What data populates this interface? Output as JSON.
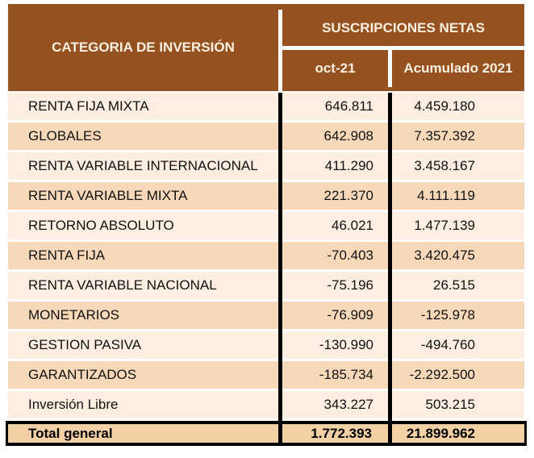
{
  "table": {
    "header": {
      "category_col": "CATEGORIA DE INVERSIÓN",
      "group_col": "SUSCRIPCIONES NETAS",
      "sub_col_1": "oct-21",
      "sub_col_2": "Acumulado 2021"
    },
    "rows": [
      {
        "category": "RENTA FIJA MIXTA",
        "oct21": "646.811",
        "acumulado": "4.459.180"
      },
      {
        "category": "GLOBALES",
        "oct21": "642.908",
        "acumulado": "7.357.392"
      },
      {
        "category": "RENTA VARIABLE INTERNACIONAL",
        "oct21": "411.290",
        "acumulado": "3.458.167"
      },
      {
        "category": "RENTA VARIABLE MIXTA",
        "oct21": "221.370",
        "acumulado": "4.111.119"
      },
      {
        "category": "RETORNO ABSOLUTO",
        "oct21": "46.021",
        "acumulado": "1.477.139"
      },
      {
        "category": "RENTA FIJA",
        "oct21": "-70.403",
        "acumulado": "3.420.475"
      },
      {
        "category": "RENTA VARIABLE NACIONAL",
        "oct21": "-75.196",
        "acumulado": "26.515"
      },
      {
        "category": "MONETARIOS",
        "oct21": "-76.909",
        "acumulado": "-125.978"
      },
      {
        "category": "GESTION PASIVA",
        "oct21": "-130.990",
        "acumulado": "-494.760"
      },
      {
        "category": "GARANTIZADOS",
        "oct21": "-185.734",
        "acumulado": "-2.292.500"
      },
      {
        "category": "Inversión Libre",
        "oct21": "343.227",
        "acumulado": "503.215"
      }
    ],
    "total": {
      "label": "Total general",
      "oct21": "1.772.393",
      "acumulado": "21.899.962"
    },
    "colors": {
      "header_brown": "#955220",
      "header_text": "#FAF0E1",
      "row_light": "#FCEEE1",
      "row_dark": "#F7D9BA",
      "row_total": "#F2CFA5",
      "divider_black": "#000000"
    }
  },
  "chart_data": {
    "type": "table",
    "title": "SUSCRIPCIONES NETAS",
    "columns": [
      "CATEGORIA DE INVERSIÓN",
      "oct-21",
      "Acumulado 2021"
    ],
    "rows": [
      [
        "RENTA FIJA MIXTA",
        646811,
        4459180
      ],
      [
        "GLOBALES",
        642908,
        7357392
      ],
      [
        "RENTA VARIABLE INTERNACIONAL",
        411290,
        3458167
      ],
      [
        "RENTA VARIABLE MIXTA",
        221370,
        4111119
      ],
      [
        "RETORNO ABSOLUTO",
        46021,
        1477139
      ],
      [
        "RENTA FIJA",
        -70403,
        3420475
      ],
      [
        "RENTA VARIABLE NACIONAL",
        -75196,
        26515
      ],
      [
        "MONETARIOS",
        -76909,
        -125978
      ],
      [
        "GESTION PASIVA",
        -130990,
        -494760
      ],
      [
        "GARANTIZADOS",
        -185734,
        -2292500
      ],
      [
        "Inversión Libre",
        343227,
        503215
      ]
    ],
    "total_row": [
      "Total general",
      1772393,
      21899962
    ],
    "number_format": "es-ES thousands separator '.'"
  }
}
